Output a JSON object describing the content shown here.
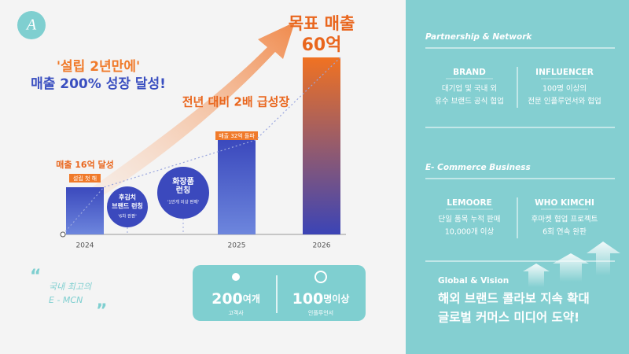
{
  "logo": "A",
  "headline": {
    "line1": "'설립 2년만에'",
    "line2": "매출 200% 성장 달성!"
  },
  "chart_data": {
    "type": "bar",
    "categories": [
      "2024",
      "2025",
      "2026"
    ],
    "values": [
      16,
      32,
      60
    ],
    "value_labels": [
      "매출 16억 달성",
      "매출 32억 돌파",
      "60억"
    ],
    "color": "#3f4fc4",
    "target_title": "목표 매출",
    "growth_note": "전년 대비 2배 급성장"
  },
  "milestones": [
    {
      "lines": [
        "설립 첫 해"
      ]
    },
    {
      "lines": [
        "후김치",
        "브랜드 런칭"
      ],
      "note": "'6차 완판'"
    },
    {
      "lines": [
        "화장품",
        "런칭"
      ],
      "note": "'1만개 이상 판매'"
    }
  ],
  "quote": [
    "국내 최고의",
    "E - MCN"
  ],
  "stats": [
    {
      "value": 200,
      "unit": "여개",
      "label": "고객사"
    },
    {
      "value": 100,
      "unit": "명이상",
      "label": "인플루언서"
    }
  ],
  "partnership": {
    "title": "Partnership & Network",
    "items": [
      {
        "head": "BRAND",
        "lines": [
          "대기업 및 국내 외",
          "유수 브랜드 공식 협업"
        ]
      },
      {
        "head": "INFLUENCER",
        "lines": [
          "100명 이상의",
          "전문 인플루언서와 협업"
        ]
      }
    ]
  },
  "ecommerce": {
    "title": "E- Commerce Business",
    "items": [
      {
        "head": "LEMOORE",
        "lines": [
          "단일 품목 누적 판매",
          "10,000개 이상"
        ]
      },
      {
        "head": "WHO KIMCHI",
        "lines": [
          "후마켓 협업 프로젝트",
          "6회 연속 완판"
        ]
      }
    ]
  },
  "vision": {
    "title": "Global & Vision",
    "lines": [
      "해외 브랜드 콜라보 지속 확대",
      "글로벌 커머스 미디어 도약!"
    ]
  }
}
